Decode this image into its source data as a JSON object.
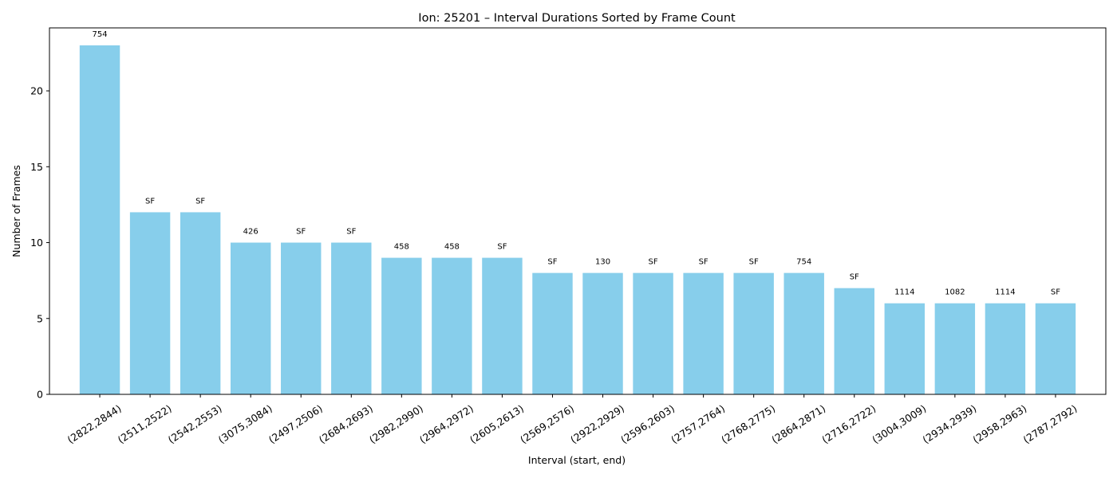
{
  "chart_data": {
    "type": "bar",
    "title": "Ion: 25201 – Interval Durations Sorted by Frame Count",
    "xlabel": "Interval (start, end)",
    "ylabel": "Number of Frames",
    "ylim": [
      0,
      24.15
    ],
    "yticks": [
      0,
      5,
      10,
      15,
      20
    ],
    "grid": false,
    "bar_color": "#87CEEB",
    "categories": [
      "(2822,2844)",
      "(2511,2522)",
      "(2542,2553)",
      "(3075,3084)",
      "(2497,2506)",
      "(2684,2693)",
      "(2982,2990)",
      "(2964,2972)",
      "(2605,2613)",
      "(2569,2576)",
      "(2922,2929)",
      "(2596,2603)",
      "(2757,2764)",
      "(2768,2775)",
      "(2864,2871)",
      "(2716,2722)",
      "(3004,3009)",
      "(2934,2939)",
      "(2958,2963)",
      "(2787,2792)"
    ],
    "values": [
      23,
      12,
      12,
      10,
      10,
      10,
      9,
      9,
      9,
      8,
      8,
      8,
      8,
      8,
      8,
      7,
      6,
      6,
      6,
      6
    ],
    "bar_labels": [
      "754",
      "SF",
      "SF",
      "426",
      "SF",
      "SF",
      "458",
      "458",
      "SF",
      "SF",
      "130",
      "SF",
      "SF",
      "SF",
      "754",
      "SF",
      "1114",
      "1082",
      "1114",
      "SF"
    ]
  }
}
